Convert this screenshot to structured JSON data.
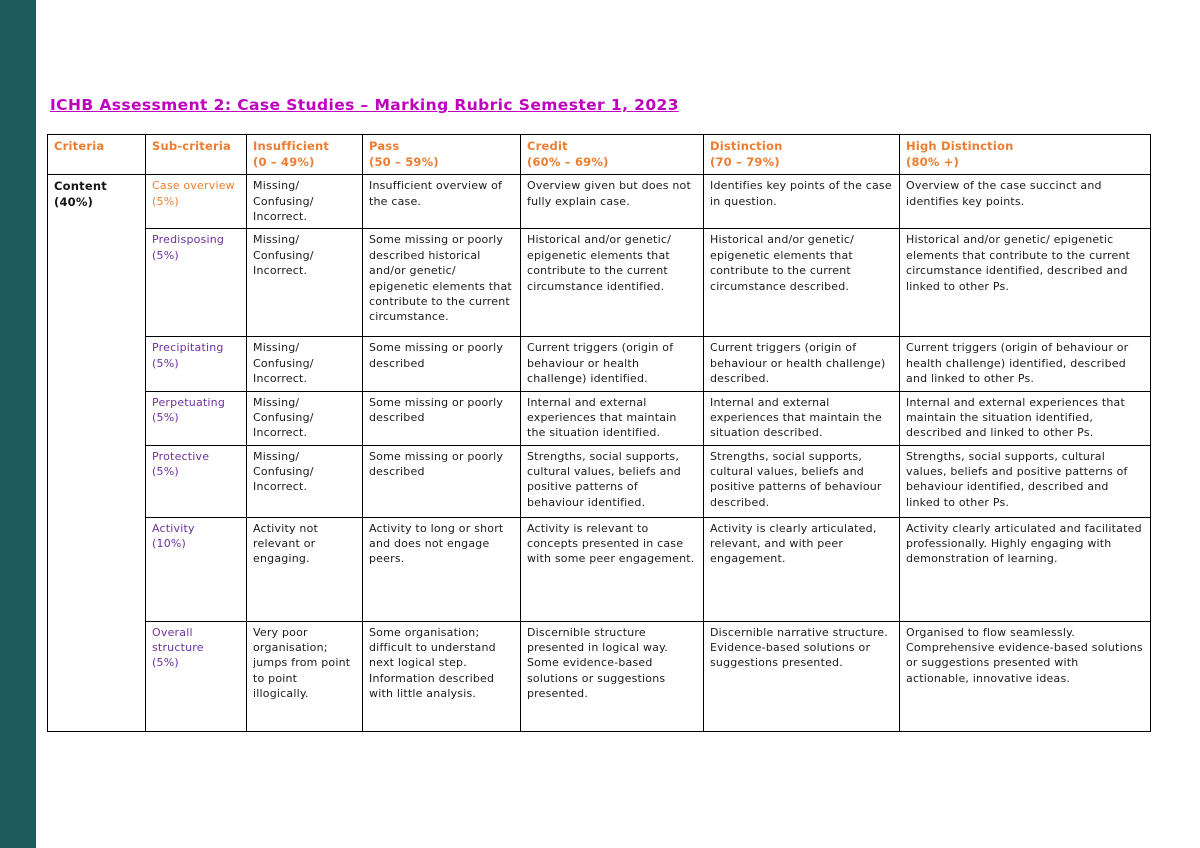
{
  "colors": {
    "sidebar_teal": "#1d5c5c",
    "title_magenta": "#bf00bf",
    "header_orange": "#ed7d31",
    "subcriteria_purple": "#7030a0"
  },
  "page": {
    "title": "ICHB Assessment 2: Case Studies – Marking Rubric Semester 1, 2023"
  },
  "table": {
    "headers": [
      {
        "label": "Criteria",
        "range": ""
      },
      {
        "label": "Sub-criteria",
        "range": ""
      },
      {
        "label": "Insufficient",
        "range": "(0 – 49%)"
      },
      {
        "label": "Pass",
        "range": "(50 – 59%)"
      },
      {
        "label": "Credit",
        "range": "(60% – 69%)"
      },
      {
        "label": "Distinction",
        "range": "(70 – 79%)"
      },
      {
        "label": "High Distinction",
        "range": "(80% +)"
      }
    ],
    "criteria": "Content\n(40%)",
    "rows": [
      {
        "name": "Case overview",
        "weight": "(5%)",
        "name_color": "#ed7d31",
        "cells": [
          "Missing/\nConfusing/\nIncorrect.",
          "Insufficient overview of the case.",
          "Overview given but does not fully explain case.",
          "Identifies key points of the case in question.",
          "Overview of the case succinct and identifies key points."
        ]
      },
      {
        "name": "Predisposing",
        "weight": "(5%)",
        "name_color": "#7030a0",
        "cells": [
          "Missing/\nConfusing/\nIncorrect.",
          "Some missing or poorly described historical and/or genetic/ epigenetic elements that contribute to the current circumstance.",
          "Historical and/or genetic/ epigenetic elements that contribute to the current circumstance identified.",
          "Historical and/or genetic/ epigenetic elements that contribute to the current circumstance described.",
          "Historical and/or genetic/ epigenetic elements that contribute to the current circumstance identified, described and linked to other Ps."
        ]
      },
      {
        "name": "Precipitating",
        "weight": "(5%)",
        "name_color": "#7030a0",
        "cells": [
          "Missing/\nConfusing/\nIncorrect.",
          "Some missing or poorly described",
          "Current triggers (origin of behaviour or health challenge) identified.",
          "Current triggers (origin of behaviour or health challenge) described.",
          "Current triggers (origin of behaviour or health challenge) identified, described and linked to other Ps."
        ]
      },
      {
        "name": "Perpetuating",
        "weight": "(5%)",
        "name_color": "#7030a0",
        "cells": [
          "Missing/\nConfusing/\nIncorrect.",
          "Some missing or poorly described",
          "Internal and external experiences that maintain the situation identified.",
          "Internal and external experiences that maintain the situation described.",
          "Internal and external experiences that maintain the situation identified, described and linked to other Ps."
        ]
      },
      {
        "name": "Protective",
        "weight": "(5%)",
        "name_color": "#7030a0",
        "cells": [
          "Missing/\nConfusing/\nIncorrect.",
          "Some missing or poorly described",
          "Strengths, social supports, cultural values, beliefs and positive patterns of behaviour identified.",
          "Strengths, social supports, cultural values, beliefs and positive patterns of behaviour described.",
          "Strengths, social supports, cultural values, beliefs and positive patterns of behaviour identified, described and linked to other Ps."
        ]
      },
      {
        "name": "Activity",
        "weight": "(10%)",
        "name_color": "#7030a0",
        "cells": [
          "Activity not relevant or engaging.",
          "Activity to long or short and does not engage peers.",
          "Activity is relevant to concepts presented in case with some peer engagement.",
          "Activity is clearly articulated, relevant, and with peer engagement.",
          "Activity clearly articulated and facilitated professionally. Highly engaging with demonstration of learning."
        ]
      },
      {
        "name": "Overall structure",
        "weight": "(5%)",
        "name_color": "#7030a0",
        "cells": [
          "Very poor organisation; jumps from point to point illogically.",
          "Some organisation; difficult to understand next logical step. Information described with little analysis.",
          "Discernible structure presented in logical way. Some evidence-based solutions or suggestions presented.",
          "Discernible narrative structure. Evidence-based solutions or suggestions presented.",
          "Organised to flow seamlessly. Comprehensive evidence-based solutions or suggestions presented with actionable, innovative ideas."
        ]
      }
    ]
  }
}
